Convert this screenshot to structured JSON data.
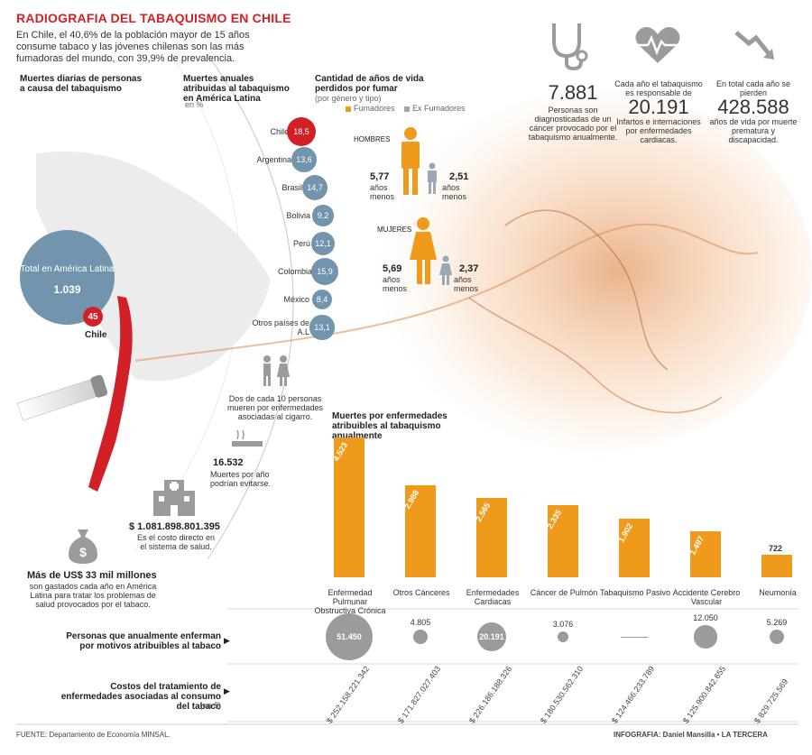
{
  "title": "RADIOGRAFIA DEL TABAQUISMO EN CHILE",
  "intro": "En Chile, el 40,6% de la población mayor de 15 años consume tabaco y las jóvenes chilenas son las más fumadoras del mundo, con 39,9% de prevalencia.",
  "daily_deaths": {
    "heading": "Muertes diarias de personas a causa del tabaquismo",
    "latam_label": "Total en América Latina",
    "latam_value": "1.039",
    "chile_value": "45",
    "chile_label": "Chile"
  },
  "annual_deaths": {
    "heading": "Muertes anuales atribuidas al tabaquismo en América Latina",
    "unit": "en %",
    "items": [
      {
        "label": "Chile",
        "value": "18,5",
        "color": "#d32027"
      },
      {
        "label": "Argentina",
        "value": "13,6",
        "color": "#7394ad"
      },
      {
        "label": "Brasil",
        "value": "14,7",
        "color": "#7394ad"
      },
      {
        "label": "Bolivia",
        "value": "9,2",
        "color": "#7394ad"
      },
      {
        "label": "Perú",
        "value": "12,1",
        "color": "#7394ad"
      },
      {
        "label": "Colombia",
        "value": "15,9",
        "color": "#7394ad"
      },
      {
        "label": "México",
        "value": "8,4",
        "color": "#7394ad"
      },
      {
        "label": "Otros países de A.L",
        "value": "13,1",
        "color": "#7394ad"
      }
    ]
  },
  "years_lost": {
    "heading": "Cantidad de años de vida perdidos por fumar",
    "subheading": "(por género y tipo)",
    "legend_smokers": "Fumadores",
    "legend_ex": "Ex Fumadores",
    "men_label": "HOMBRES",
    "men_smoker": "5,77",
    "men_ex": "2,51",
    "women_label": "MUJERES",
    "women_smoker": "5,69",
    "women_ex": "2,37",
    "unit": "años menos",
    "colors": {
      "smoker": "#f09a1c",
      "ex": "#9aa7b5"
    }
  },
  "two_of_ten": "Dos de cada 10 personas mueren por enfermedades asociadas al cigarro.",
  "avoidable": {
    "value": "16.532",
    "text": "Muertes por año podrían evitarse."
  },
  "health_cost": {
    "value": "$ 1.081.898.801.395",
    "text": "Es el costo directo en el sistema de salud."
  },
  "latam_spend": {
    "value": "Más de US$ 33 mil millones",
    "text": "son gastados cada año en América Latina para tratar los problemas de salud provocados por el tabaco."
  },
  "stats": [
    {
      "icon": "stethoscope-icon",
      "value": "7.881",
      "text": "Personas son diagnosticadas de un cáncer provocado por el tabaquismo anualmente."
    },
    {
      "icon": "heartbeat-icon",
      "pre": "Cada año el tabaquismo es responsable de",
      "value": "20.191",
      "text": "Infartos e internaciones por enfermedades cardiacas."
    },
    {
      "icon": "trend-down-icon",
      "pre": "En total cada año se pierden",
      "value": "428.588",
      "text": "años de vida por muerte prematura y discapacidad."
    }
  ],
  "chart_data": {
    "type": "bar",
    "title": "Muertes por enfermedades atribuibles al tabaquismo anualmente",
    "categories": [
      "Enfermedad Pulmunar Obstructiva Crónica",
      "Otros Cánceres",
      "Enfermedades Cardiacas",
      "Cáncer de Pulmón",
      "Tabaquismo Pasivo",
      "Accidente Cerebro Vascular",
      "Neumonía"
    ],
    "values": [
      4523,
      2988,
      2565,
      2335,
      1902,
      1497,
      722
    ],
    "value_labels": [
      "4.523",
      "2.988",
      "2.565",
      "2.335",
      "1.902",
      "1.497",
      "722"
    ],
    "color": "#f09a1c",
    "row_sick": {
      "label": "Personas que anualmente enferman por motivos atribuibles al tabaco",
      "values": [
        51450,
        4805,
        20191,
        3076,
        null,
        12050,
        5269
      ],
      "labels": [
        "51.450",
        "4.805",
        "20.191",
        "3.076",
        "",
        "12.050",
        "5.269"
      ]
    },
    "row_cost": {
      "label": "Costos del tratamiento de enfermedades asociadas al consumo del tabaco",
      "unit": "(en $)",
      "labels": [
        "$ 252.158.221.342",
        "$ 171.827.027.403",
        "$ 226.186.188.326",
        "$ 180.530.562.310",
        "$ 124.466.233.789",
        "$ 125.900.842.655",
        "$ 829.725.569"
      ]
    }
  },
  "footer": {
    "source": "FUENTE: Departamento de Economía MINSAL.",
    "credit": "INFOGRAFIA: Daniel Mansilla • LA TERCERA"
  }
}
